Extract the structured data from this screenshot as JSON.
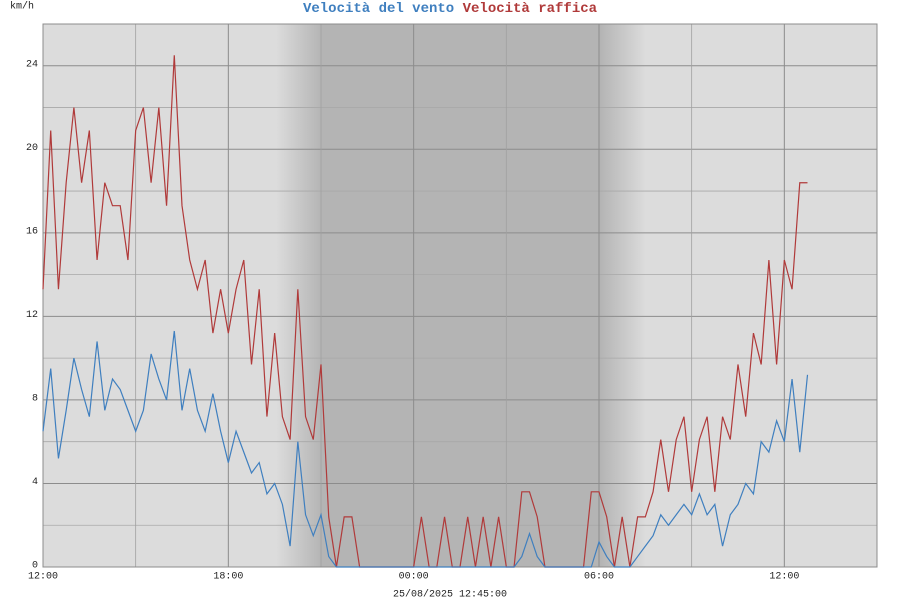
{
  "chart_data": {
    "type": "line",
    "y_label": "km/h",
    "footer": "25/08/2025 12:45:00",
    "xlim": [
      0,
      27
    ],
    "xticks": [
      {
        "value": 0,
        "label": "12:00"
      },
      {
        "value": 6,
        "label": "18:00"
      },
      {
        "value": 12,
        "label": "00:00"
      },
      {
        "value": 18,
        "label": "06:00"
      },
      {
        "value": 24,
        "label": "12:00"
      }
    ],
    "ylim": [
      0,
      26
    ],
    "yticks": [
      0,
      4,
      8,
      12,
      16,
      20,
      24
    ],
    "grid": true,
    "x": [
      0,
      0.25,
      0.5,
      0.75,
      1,
      1.25,
      1.5,
      1.75,
      2,
      2.25,
      2.5,
      2.75,
      3,
      3.25,
      3.5,
      3.75,
      4,
      4.25,
      4.5,
      4.75,
      5,
      5.25,
      5.5,
      5.75,
      6,
      6.25,
      6.5,
      6.75,
      7,
      7.25,
      7.5,
      7.75,
      8,
      8.25,
      8.5,
      8.75,
      9,
      9.25,
      9.5,
      9.75,
      10,
      10.25,
      10.5,
      10.75,
      11,
      11.25,
      11.5,
      11.75,
      12,
      12.25,
      12.5,
      12.75,
      13,
      13.25,
      13.5,
      13.75,
      14,
      14.25,
      14.5,
      14.75,
      15,
      15.25,
      15.5,
      15.75,
      16,
      16.25,
      16.5,
      16.75,
      17,
      17.25,
      17.5,
      17.75,
      18,
      18.25,
      18.5,
      18.75,
      19,
      19.25,
      19.5,
      19.75,
      20,
      20.25,
      20.5,
      20.75,
      21,
      21.25,
      21.5,
      21.75,
      22,
      22.25,
      22.5,
      22.75,
      23,
      23.25,
      23.5,
      23.75,
      24,
      24.25,
      24.5,
      24.75
    ],
    "series": [
      {
        "name": "Velocità del vento",
        "color": "#3f7fbf",
        "values": [
          6.5,
          9.5,
          5.2,
          7.5,
          10,
          8.5,
          7.2,
          10.8,
          7.5,
          9,
          8.5,
          7.5,
          6.5,
          7.5,
          10.2,
          9,
          8,
          11.3,
          7.5,
          9.5,
          7.5,
          6.5,
          8.3,
          6.5,
          5,
          6.5,
          5.5,
          4.5,
          5,
          3.5,
          4,
          3,
          1,
          6,
          2.5,
          1.5,
          2.5,
          0.5,
          0,
          0,
          0,
          0,
          0,
          0,
          0,
          0,
          0,
          0,
          0,
          0,
          0,
          0,
          0,
          0,
          0,
          0,
          0,
          0,
          0,
          0,
          0,
          0,
          0.5,
          1.6,
          0.5,
          0,
          0,
          0,
          0,
          0,
          0,
          0,
          1.2,
          0.5,
          0,
          0,
          0,
          0.5,
          1,
          1.5,
          2.5,
          2,
          2.5,
          3,
          2.5,
          3.5,
          2.5,
          3,
          1,
          2.5,
          3,
          4,
          3.5,
          6,
          5.5,
          7,
          6,
          9,
          5.5,
          9.2
        ]
      },
      {
        "name": "Velocità raffica",
        "color": "#b03a3a",
        "values": [
          13.3,
          20.9,
          13.3,
          18.4,
          22,
          18.4,
          20.9,
          14.7,
          18.4,
          17.3,
          17.3,
          14.7,
          20.9,
          22,
          18.4,
          22,
          17.3,
          24.5,
          17.3,
          14.7,
          13.3,
          14.7,
          11.2,
          13.3,
          11.2,
          13.3,
          14.7,
          9.7,
          13.3,
          7.2,
          11.2,
          7.2,
          6.1,
          13.3,
          7.2,
          6.1,
          9.7,
          2.4,
          0,
          2.4,
          2.4,
          0,
          0,
          0,
          0,
          0,
          0,
          0,
          0,
          2.4,
          0,
          0,
          2.4,
          0,
          0,
          2.4,
          0,
          2.4,
          0,
          2.4,
          0,
          0,
          3.6,
          3.6,
          2.4,
          0,
          0,
          0,
          0,
          0,
          0,
          3.6,
          3.6,
          2.4,
          0,
          2.4,
          0,
          2.4,
          2.4,
          3.6,
          6.1,
          3.6,
          6.1,
          7.2,
          3.6,
          6.1,
          7.2,
          3.6,
          7.2,
          6.1,
          9.7,
          7.2,
          11.2,
          9.7,
          14.7,
          9.7,
          14.7,
          13.3,
          18.4,
          18.4
        ]
      }
    ]
  }
}
